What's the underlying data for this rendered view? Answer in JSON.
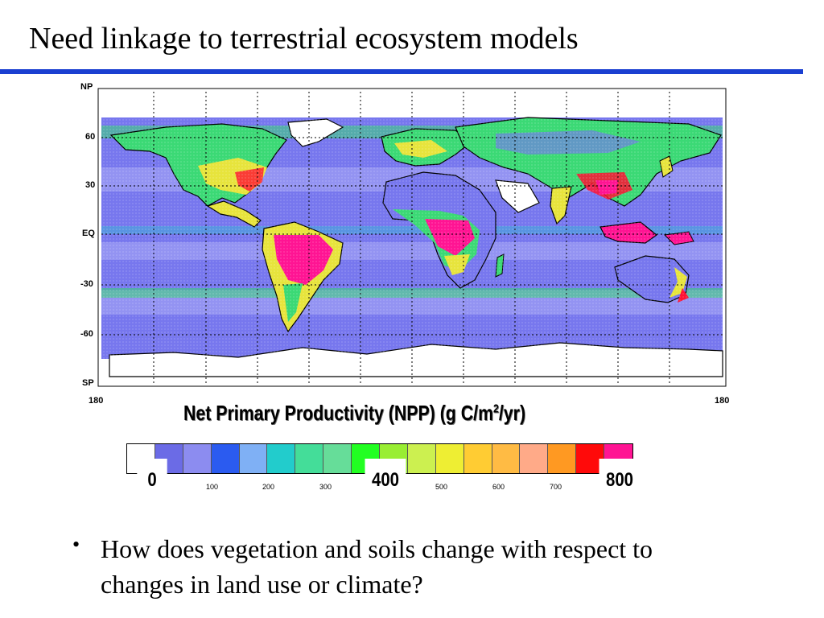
{
  "slide": {
    "title": "Need linkage to terrestrial ecosystem models"
  },
  "map": {
    "lat_labels": [
      "NP",
      "60",
      "30",
      "EQ",
      "-30",
      "-60",
      "SP"
    ],
    "lon_labels": [
      "180",
      "180"
    ],
    "colors": {
      "ocean_low": "#7777ee",
      "ocean_mid": "#9a9af2",
      "land_green": "#3bd975",
      "land_yellow": "#e7e43c",
      "land_red": "#ff1133",
      "land_magenta": "#ff1493",
      "ice": "#ffffff",
      "coast": "#000000"
    }
  },
  "colorbar": {
    "caption_main": "Net Primary Productivity (NPP) (g C/m",
    "caption_sup": "2",
    "caption_end": "/yr)",
    "colors": [
      "#ffffff",
      "#6b6be6",
      "#8c8cf0",
      "#2b5bf0",
      "#7fb0f5",
      "#22cccc",
      "#44dd99",
      "#66dd99",
      "#22ff22",
      "#99ee33",
      "#ccf050",
      "#eeee33",
      "#ffcc33",
      "#ffbb44",
      "#ffaa88",
      "#ff9922",
      "#ff0a0a",
      "#ff1493"
    ],
    "major_ticks": [
      "0",
      "400",
      "800"
    ],
    "minor_ticks": [
      "100",
      "200",
      "300",
      "500",
      "600",
      "700"
    ]
  },
  "bullets": [
    "How does vegetation and soils change with respect to changes in land use or climate?"
  ]
}
